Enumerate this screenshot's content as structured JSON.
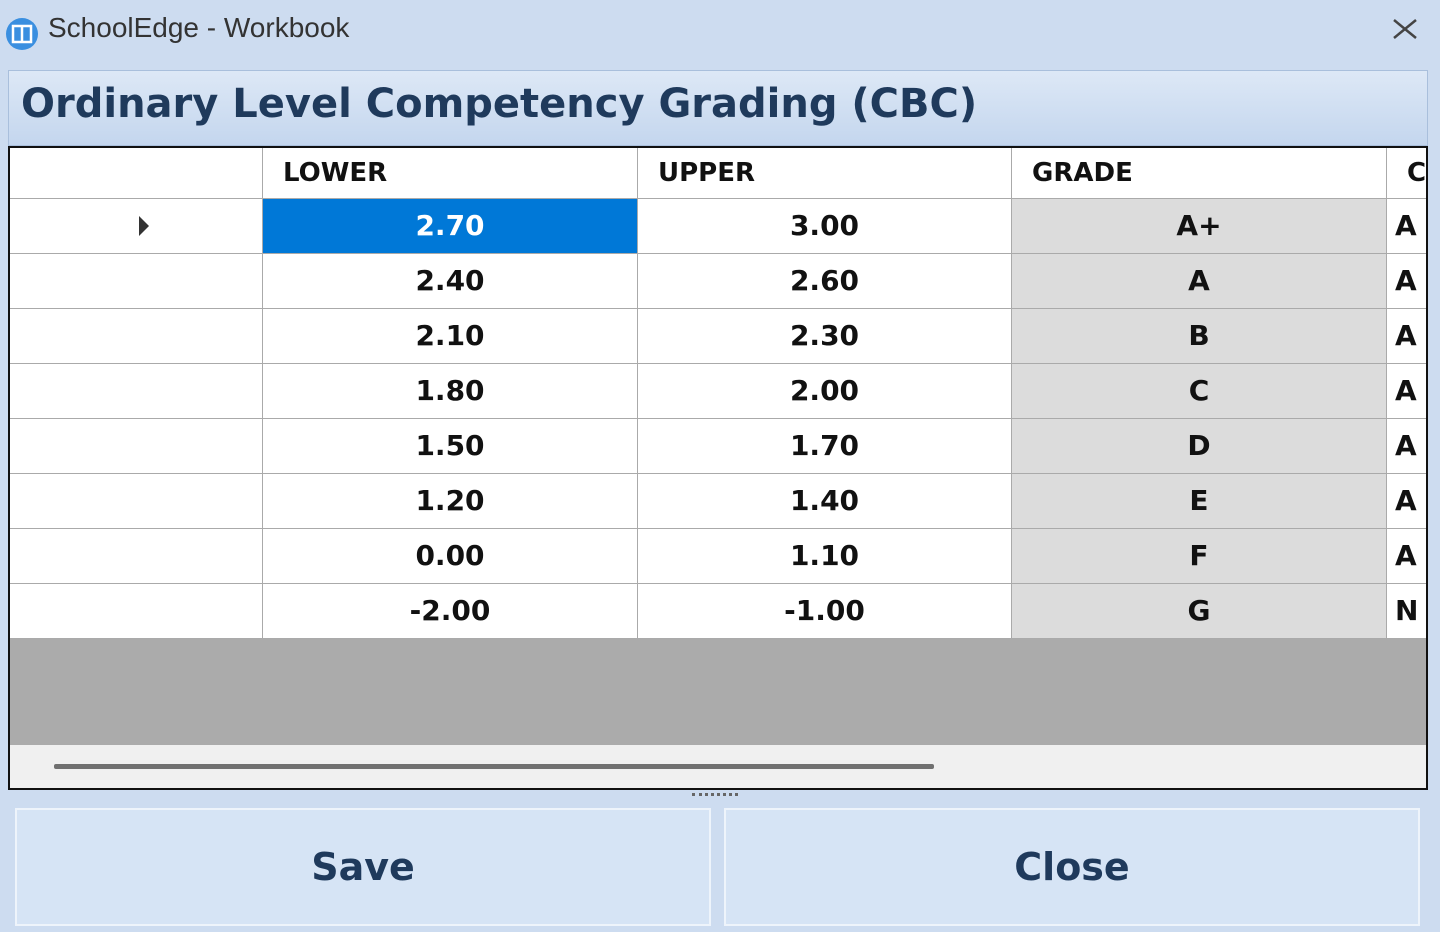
{
  "window": {
    "title": "SchoolEdge - Workbook"
  },
  "header": {
    "title": "Ordinary Level Competency Grading (CBC)"
  },
  "table": {
    "columns": [
      "LOWER",
      "UPPER",
      "GRADE",
      "C"
    ],
    "rows": [
      [
        "2.70",
        "3.00",
        "A+",
        "A"
      ],
      [
        "2.40",
        "2.60",
        "A",
        "A"
      ],
      [
        "2.10",
        "2.30",
        "B",
        "A"
      ],
      [
        "1.80",
        "2.00",
        "C",
        "A"
      ],
      [
        "1.50",
        "1.70",
        "D",
        "A"
      ],
      [
        "1.20",
        "1.40",
        "E",
        "A"
      ],
      [
        "0.00",
        "1.10",
        "F",
        "A"
      ],
      [
        "-2.00",
        "-1.00",
        "G",
        "N"
      ]
    ]
  },
  "buttons": {
    "save": "Save",
    "close": "Close"
  }
}
